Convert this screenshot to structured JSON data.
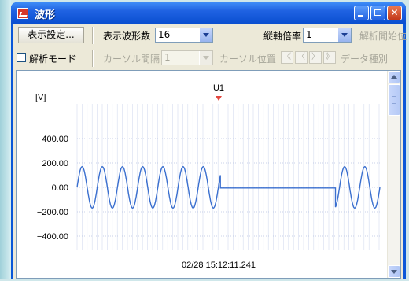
{
  "window": {
    "title": "波形"
  },
  "toolbar1": {
    "display_settings_button": "表示設定...",
    "wave_count_label": "表示波形数",
    "wave_count_value": "16",
    "vertical_scale_label": "縦軸倍率",
    "vertical_scale_value": "1",
    "analysis_start_label": "解析開始位"
  },
  "toolbar2": {
    "analysis_mode_label": "解析モード",
    "cursor_interval_label": "カーソル間隔",
    "cursor_interval_value": "1",
    "cursor_position_label": "カーソル位置",
    "nav_buttons": [
      "《",
      "〈",
      "〉",
      "》"
    ],
    "data_type_label": "データ種別"
  },
  "chart_data": {
    "type": "line",
    "title": "U1",
    "ylabel": "[V]",
    "ylim": [
      -500,
      500
    ],
    "yticks": [
      "400.00",
      "200.00",
      "0.00",
      "−200.00",
      "−400.00"
    ],
    "ytick_values": [
      400,
      200,
      0,
      -200,
      -400
    ],
    "timestamp": "02/28 15:12:11.241",
    "series": [
      {
        "segments": [
          {
            "x_start": 0.0,
            "x_end": 7.1,
            "kind": "sine",
            "amplitude": 170,
            "cycles_per_unit": 1.0
          },
          {
            "x_start": 7.1,
            "x_end": 12.8,
            "kind": "flat",
            "level": -5
          },
          {
            "x_start": 12.8,
            "x_end": 15.0,
            "kind": "sine",
            "amplitude": 170,
            "cycles_per_unit": 1.0
          }
        ]
      }
    ],
    "xlim": [
      0,
      15
    ],
    "colors": {
      "line": "#3a6fcf",
      "grid": "#d6dcef",
      "marker": "#e2473f"
    }
  }
}
